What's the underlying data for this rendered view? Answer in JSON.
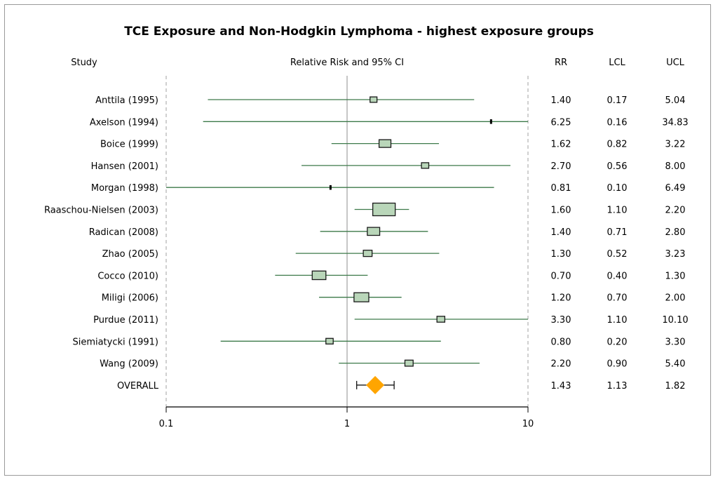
{
  "chart_data": {
    "type": "forest",
    "title": "TCE Exposure and Non-Hodgkin Lymphoma - highest exposure groups",
    "x_scale": "log",
    "xlim": [
      0.1,
      10
    ],
    "x_ticks": [
      "0.1",
      "1",
      "10"
    ],
    "reference_line": 1,
    "headers": {
      "study": "Study",
      "plot": "Relative Risk and 95% CI",
      "rr": "RR",
      "lcl": "LCL",
      "ucl": "UCL"
    },
    "studies": [
      {
        "label": "Anttila (1995)",
        "rr": "1.40",
        "lcl": "0.17",
        "ucl": "5.04",
        "weight": 0.15
      },
      {
        "label": "Axelson (1994)",
        "rr": "6.25",
        "lcl": "0.16",
        "ucl": "34.83",
        "weight": 0.05
      },
      {
        "label": "Boice (1999)",
        "rr": "1.62",
        "lcl": "0.82",
        "ucl": "3.22",
        "weight": 0.42
      },
      {
        "label": "Hansen (2001)",
        "rr": "2.70",
        "lcl": "0.56",
        "ucl": "8.00",
        "weight": 0.17
      },
      {
        "label": "Morgan (1998)",
        "rr": "0.81",
        "lcl": "0.10",
        "ucl": "6.49",
        "weight": 0.05
      },
      {
        "label": "Raaschou-Nielsen (2003)",
        "rr": "1.60",
        "lcl": "1.10",
        "ucl": "2.20",
        "weight": 1.0
      },
      {
        "label": "Radican (2008)",
        "rr": "1.40",
        "lcl": "0.71",
        "ucl": "2.80",
        "weight": 0.45
      },
      {
        "label": "Zhao (2005)",
        "rr": "1.30",
        "lcl": "0.52",
        "ucl": "3.23",
        "weight": 0.25
      },
      {
        "label": "Cocco (2010)",
        "rr": "0.70",
        "lcl": "0.40",
        "ucl": "1.30",
        "weight": 0.52
      },
      {
        "label": "Miligi (2006)",
        "rr": "1.20",
        "lcl": "0.70",
        "ucl": "2.00",
        "weight": 0.58
      },
      {
        "label": "Purdue (2011)",
        "rr": "3.30",
        "lcl": "1.10",
        "ucl": "10.10",
        "weight": 0.2
      },
      {
        "label": "Siemiatycki (1991)",
        "rr": "0.80",
        "lcl": "0.20",
        "ucl": "3.30",
        "weight": 0.17
      },
      {
        "label": "Wang (2009)",
        "rr": "2.20",
        "lcl": "0.90",
        "ucl": "5.40",
        "weight": 0.22
      }
    ],
    "overall": {
      "label": "OVERALL",
      "rr": "1.43",
      "lcl": "1.13",
      "ucl": "1.82"
    },
    "colors": {
      "ci_line": "#3d7a4a",
      "box_fill": "#b9d6b9",
      "box_stroke": "#1a1a1a",
      "diamond": "#ffa500",
      "guide_line": "#a0a0a0",
      "axis": "#000000",
      "frame": "#9a9a9a"
    }
  }
}
